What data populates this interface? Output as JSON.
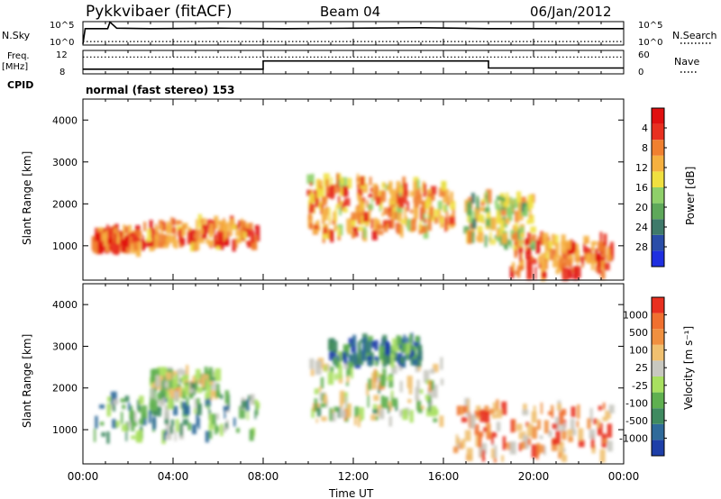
{
  "chart_data": [
    {
      "type": "line",
      "header": {
        "station": "Pykkvibaer (fitACF)",
        "beam": "Beam 04",
        "date": "06/Jan/2012"
      },
      "left_label": "N.Sky",
      "right_label": "N.Search",
      "y_ticks_left": [
        "10^5",
        "10^0"
      ],
      "y_ticks_right": [
        "10^5",
        "10^0"
      ],
      "series": [
        {
          "name": "N.Sky",
          "style": "solid",
          "x": [
            0,
            0.1,
            1.1,
            1.2,
            1.5,
            3,
            6,
            9,
            12,
            15,
            18,
            21,
            24
          ],
          "y": [
            0.05,
            0.7,
            0.7,
            0.98,
            0.72,
            0.7,
            0.72,
            0.7,
            0.72,
            0.74,
            0.7,
            0.7,
            0.7
          ]
        },
        {
          "name": "N.Search",
          "style": "dotted",
          "x": [
            0,
            24
          ],
          "y": [
            0.15,
            0.15
          ]
        }
      ]
    },
    {
      "type": "line",
      "left_label": "Freq.",
      "left_units": "[MHz]",
      "right_label": "Nave",
      "bottom_label": "CPID",
      "y_ticks_left": [
        "12",
        "8"
      ],
      "y_ticks_right": [
        "60",
        "0"
      ],
      "cpid_text": "normal (fast stereo) 153",
      "series": [
        {
          "name": "Freq.",
          "style": "solid",
          "x": [
            0,
            8,
            8,
            18,
            18,
            24
          ],
          "y": [
            0.2,
            0.2,
            0.55,
            0.55,
            0.25,
            0.25
          ]
        },
        {
          "name": "Nave",
          "style": "dotted",
          "x": [
            0,
            24
          ],
          "y": [
            0.72,
            0.72
          ]
        }
      ]
    },
    {
      "type": "heatmap",
      "ylabel": "Slant Range [km]",
      "ylim": [
        180,
        4500
      ],
      "xlim": [
        0,
        24
      ],
      "y_ticks": [
        1000,
        2000,
        3000,
        4000
      ],
      "colorbar": {
        "label": "Power [dB]",
        "ticks": [
          "4",
          "8",
          "12",
          "16",
          "20",
          "24",
          "28"
        ],
        "range": [
          0,
          32
        ],
        "colors": [
          "#1f2fe0",
          "#2a4da8",
          "#3f7a6a",
          "#5ea85a",
          "#8fd06a",
          "#f0e040",
          "#f5b040",
          "#f08030",
          "#e83020",
          "#e01010"
        ]
      },
      "echo_regions": [
        {
          "x": [
            0.5,
            2.5
          ],
          "y": [
            900,
            1400
          ],
          "level": 0.85
        },
        {
          "x": [
            2.5,
            7.8
          ],
          "y": [
            1000,
            1600
          ],
          "level": 0.8
        },
        {
          "x": [
            10,
            13
          ],
          "y": [
            1200,
            2600
          ],
          "level": 0.7
        },
        {
          "x": [
            13,
            16.5
          ],
          "y": [
            1300,
            2500
          ],
          "level": 0.65
        },
        {
          "x": [
            17,
            20
          ],
          "y": [
            1000,
            2200
          ],
          "level": 0.5
        },
        {
          "x": [
            19,
            23.5
          ],
          "y": [
            300,
            1200
          ],
          "level": 0.8
        }
      ]
    },
    {
      "type": "heatmap",
      "ylabel": "Slant Range [km]",
      "xlabel": "Time UT",
      "ylim": [
        180,
        4500
      ],
      "xlim": [
        0,
        24
      ],
      "x_ticks": [
        "00:00",
        "04:00",
        "08:00",
        "12:00",
        "16:00",
        "20:00",
        "00:00"
      ],
      "y_ticks": [
        1000,
        2000,
        3000,
        4000
      ],
      "colorbar": {
        "label": "Velocity [m s⁻¹]",
        "ticks": [
          "1000",
          "500",
          "100",
          "25",
          "-25",
          "-100",
          "-500",
          "-1000"
        ],
        "range": [
          -1200,
          1200
        ],
        "colors": [
          "#1e3fa8",
          "#2f6a9a",
          "#3f8a60",
          "#5fb050",
          "#a8e060",
          "#c8c8c0",
          "#f0c070",
          "#f09040",
          "#f07030",
          "#e83020"
        ]
      },
      "echo_regions": [
        {
          "x": [
            0.5,
            7.8
          ],
          "y": [
            800,
            1800
          ],
          "level": 0.35
        },
        {
          "x": [
            3,
            6
          ],
          "y": [
            1800,
            2400
          ],
          "level": 0.5
        },
        {
          "x": [
            10,
            16
          ],
          "y": [
            1200,
            2600
          ],
          "level": 0.5
        },
        {
          "x": [
            11,
            15
          ],
          "y": [
            2600,
            3200
          ],
          "level": 0.2
        },
        {
          "x": [
            16.5,
            23.5
          ],
          "y": [
            300,
            1600
          ],
          "level": 0.75
        }
      ]
    }
  ]
}
